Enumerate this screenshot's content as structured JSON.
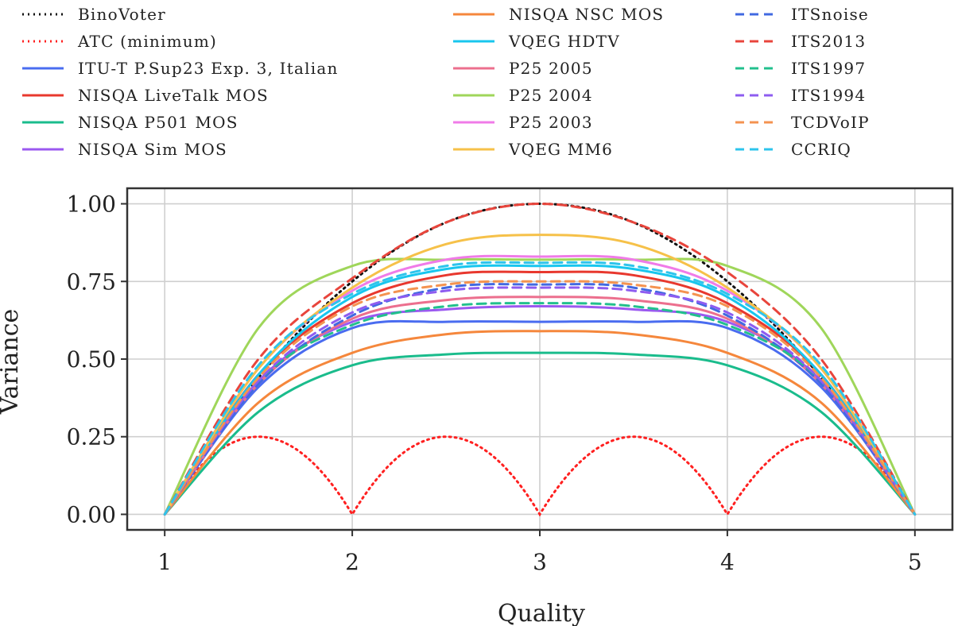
{
  "chart_data": {
    "type": "line",
    "title": "",
    "xlabel": "Quality",
    "ylabel": "Variance",
    "xlim": [
      0.8,
      5.2
    ],
    "ylim": [
      -0.05,
      1.05
    ],
    "xticks": [
      1,
      2,
      3,
      4,
      5
    ],
    "yticks": [
      0.0,
      0.25,
      0.5,
      0.75,
      1.0
    ],
    "xtick_labels": [
      "1",
      "2",
      "3",
      "4",
      "5"
    ],
    "ytick_labels": [
      "0.00",
      "0.25",
      "0.50",
      "0.75",
      "1.00"
    ],
    "grid": true,
    "legend_position": "top",
    "series": [
      {
        "name": "BinoVoter",
        "color": "#111111",
        "dash": "dotted",
        "x": [
          1,
          1.5,
          2,
          2.5,
          3,
          3.5,
          4,
          4.5,
          5
        ],
        "y": [
          0,
          0.44,
          0.75,
          0.94,
          1.0,
          0.94,
          0.75,
          0.44,
          0
        ]
      },
      {
        "name": "ATC (minimum)",
        "color": "#ff2020",
        "dash": "dotted",
        "x": [
          1,
          1.5,
          2,
          2.5,
          3,
          3.5,
          4,
          4.5,
          5
        ],
        "y": [
          0,
          0.25,
          0,
          0.25,
          0,
          0.25,
          0,
          0.25,
          0
        ]
      },
      {
        "name": "ITU-T P.Sup23 Exp. 3, Italian",
        "color": "#4a6cf0",
        "dash": "solid",
        "x": [
          1,
          1.5,
          2,
          2.5,
          3,
          3.5,
          4,
          4.5,
          5
        ],
        "y": [
          0,
          0.41,
          0.6,
          0.62,
          0.62,
          0.62,
          0.6,
          0.41,
          0
        ]
      },
      {
        "name": "NISQA LiveTalk MOS",
        "color": "#e8382e",
        "dash": "solid",
        "x": [
          1,
          1.5,
          2,
          2.5,
          3,
          3.5,
          4,
          4.5,
          5
        ],
        "y": [
          0,
          0.45,
          0.68,
          0.77,
          0.78,
          0.77,
          0.68,
          0.45,
          0
        ]
      },
      {
        "name": "NISQA P501 MOS",
        "color": "#1abc8c",
        "dash": "solid",
        "x": [
          1,
          1.5,
          2,
          2.5,
          3,
          3.5,
          4,
          4.5,
          5
        ],
        "y": [
          0,
          0.33,
          0.48,
          0.515,
          0.52,
          0.515,
          0.48,
          0.33,
          0
        ]
      },
      {
        "name": "NISQA Sim MOS",
        "color": "#9b59f0",
        "dash": "solid",
        "x": [
          1,
          1.5,
          2,
          2.5,
          3,
          3.5,
          4,
          4.5,
          5
        ],
        "y": [
          0,
          0.43,
          0.62,
          0.66,
          0.67,
          0.66,
          0.62,
          0.43,
          0
        ]
      },
      {
        "name": "NISQA NSC MOS",
        "color": "#f5873c",
        "dash": "solid",
        "x": [
          1,
          1.5,
          2,
          2.5,
          3,
          3.5,
          4,
          4.5,
          5
        ],
        "y": [
          0,
          0.36,
          0.52,
          0.58,
          0.59,
          0.58,
          0.52,
          0.36,
          0
        ]
      },
      {
        "name": "VQEG HDTV",
        "color": "#18c6ee",
        "dash": "solid",
        "x": [
          1,
          1.5,
          2,
          2.5,
          3,
          3.5,
          4,
          4.5,
          5
        ],
        "y": [
          0,
          0.45,
          0.7,
          0.79,
          0.8,
          0.79,
          0.7,
          0.45,
          0
        ]
      },
      {
        "name": "P25 2005",
        "color": "#ec6f8e",
        "dash": "solid",
        "x": [
          1,
          1.5,
          2,
          2.5,
          3,
          3.5,
          4,
          4.5,
          5
        ],
        "y": [
          0,
          0.42,
          0.63,
          0.69,
          0.7,
          0.69,
          0.63,
          0.42,
          0
        ]
      },
      {
        "name": "P25 2004",
        "color": "#9fd65a",
        "dash": "solid",
        "x": [
          1,
          1.5,
          2,
          2.5,
          3,
          3.5,
          4,
          4.5,
          5
        ],
        "y": [
          0,
          0.6,
          0.8,
          0.82,
          0.82,
          0.82,
          0.8,
          0.6,
          0
        ]
      },
      {
        "name": "P25 2003",
        "color": "#f07be8",
        "dash": "solid",
        "x": [
          1,
          1.5,
          2,
          2.5,
          3,
          3.5,
          4,
          4.5,
          5
        ],
        "y": [
          0,
          0.47,
          0.72,
          0.82,
          0.83,
          0.82,
          0.72,
          0.47,
          0
        ]
      },
      {
        "name": "VQEG MM6",
        "color": "#f6c149",
        "dash": "solid",
        "x": [
          1,
          1.5,
          2,
          2.5,
          3,
          3.5,
          4,
          4.5,
          5
        ],
        "y": [
          0,
          0.47,
          0.73,
          0.87,
          0.9,
          0.87,
          0.73,
          0.47,
          0
        ]
      },
      {
        "name": "ITSnoise",
        "color": "#4169e1",
        "dash": "dashed",
        "x": [
          1,
          1.5,
          2,
          2.5,
          3,
          3.5,
          4,
          4.5,
          5
        ],
        "y": [
          0,
          0.42,
          0.64,
          0.73,
          0.74,
          0.73,
          0.64,
          0.42,
          0
        ]
      },
      {
        "name": "ITS2013",
        "color": "#e8453c",
        "dash": "dashed",
        "x": [
          1,
          1.5,
          2,
          2.5,
          3,
          3.5,
          4,
          4.5,
          5
        ],
        "y": [
          0,
          0.5,
          0.76,
          0.94,
          1.0,
          0.94,
          0.78,
          0.5,
          0
        ]
      },
      {
        "name": "ITS1997",
        "color": "#22c08d",
        "dash": "dashed",
        "x": [
          1,
          1.5,
          2,
          2.5,
          3,
          3.5,
          4,
          4.5,
          5
        ],
        "y": [
          0,
          0.43,
          0.61,
          0.67,
          0.68,
          0.67,
          0.61,
          0.43,
          0
        ]
      },
      {
        "name": "ITS1994",
        "color": "#8e5cf0",
        "dash": "dashed",
        "x": [
          1,
          1.5,
          2,
          2.5,
          3,
          3.5,
          4,
          4.5,
          5
        ],
        "y": [
          0,
          0.43,
          0.65,
          0.72,
          0.73,
          0.72,
          0.65,
          0.43,
          0
        ]
      },
      {
        "name": "TCDVoIP",
        "color": "#f49350",
        "dash": "dashed",
        "x": [
          1,
          1.5,
          2,
          2.5,
          3,
          3.5,
          4,
          4.5,
          5
        ],
        "y": [
          0,
          0.44,
          0.67,
          0.74,
          0.75,
          0.74,
          0.67,
          0.44,
          0
        ]
      },
      {
        "name": "CCRIQ",
        "color": "#2ec4ec",
        "dash": "dashed",
        "x": [
          1,
          1.5,
          2,
          2.5,
          3,
          3.5,
          4,
          4.5,
          5
        ],
        "y": [
          0,
          0.48,
          0.71,
          0.8,
          0.81,
          0.8,
          0.71,
          0.48,
          0
        ]
      }
    ]
  }
}
